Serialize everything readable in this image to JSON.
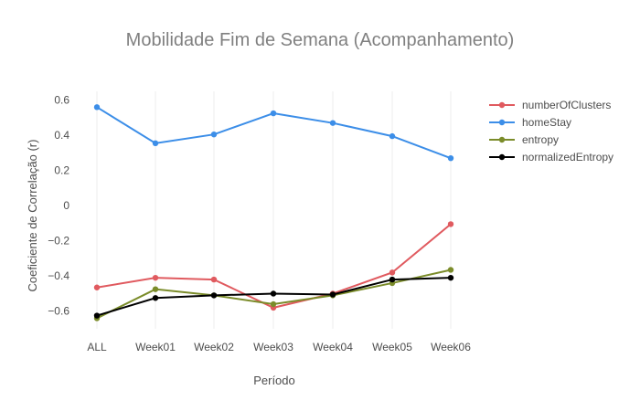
{
  "chart_data": {
    "type": "line",
    "title": "Mobilidade Fim de Semana (Acompanhamento)",
    "xlabel": "Período",
    "ylabel": "Coeficiente de Correlação (r)",
    "categories": [
      "ALL",
      "Week01",
      "Week02",
      "Week03",
      "Week04",
      "Week05",
      "Week06"
    ],
    "yticks": [
      -0.6,
      -0.4,
      -0.2,
      0,
      0.2,
      0.4,
      0.6
    ],
    "ytick_labels": [
      "−0.6",
      "−0.4",
      "−0.2",
      "0",
      "0.2",
      "0.4",
      "0.6"
    ],
    "ylim": [
      -0.7,
      0.65
    ],
    "grid": true,
    "legend_position": "top-right",
    "series": [
      {
        "name": "numberOfClusters",
        "color": "#e05a5f",
        "values": [
          -0.465,
          -0.41,
          -0.42,
          -0.58,
          -0.5,
          -0.38,
          -0.105
        ]
      },
      {
        "name": "homeStay",
        "color": "#3c8ee8",
        "values": [
          0.56,
          0.355,
          0.405,
          0.525,
          0.47,
          0.395,
          0.27
        ]
      },
      {
        "name": "entropy",
        "color": "#7b8c2a",
        "values": [
          -0.64,
          -0.475,
          -0.51,
          -0.56,
          -0.51,
          -0.44,
          -0.365
        ]
      },
      {
        "name": "normalizedEntropy",
        "color": "#000000",
        "values": [
          -0.625,
          -0.525,
          -0.51,
          -0.5,
          -0.505,
          -0.42,
          -0.41
        ]
      }
    ]
  }
}
